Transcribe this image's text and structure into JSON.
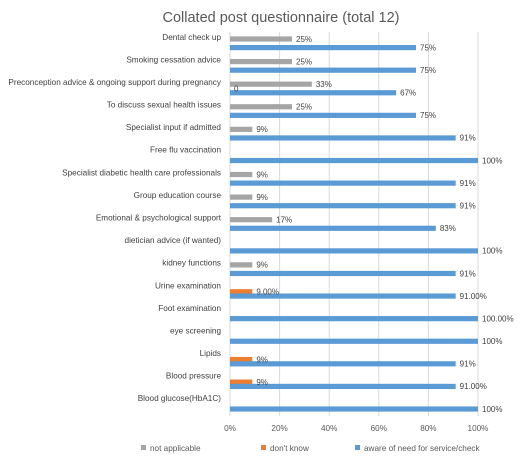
{
  "chart_data": {
    "type": "bar",
    "orientation": "horizontal",
    "title": "Collated post questionnaire (total 12)",
    "categories": [
      "Dental check up",
      "Smoking cessation advice",
      "Preconception advice & ongoing support during pregnancy",
      "To discuss sexual health issues",
      "Specialist input if admitted",
      "Free flu vaccination",
      "Specialist diabetic health care professionals",
      "Group education course",
      "Emotional & psychological support",
      "dietician advice (if wanted)",
      "kidney functions",
      "Urine examination",
      "Foot examination",
      "eye screening",
      "Lipids",
      "Blood pressure",
      "Blood glucose(HbA1C)"
    ],
    "series": [
      {
        "name": "not applicable",
        "color": "#a5a5a5",
        "values": [
          25,
          25,
          33,
          25,
          9,
          null,
          9,
          9,
          17,
          null,
          9,
          null,
          null,
          null,
          null,
          null,
          null
        ],
        "labels": [
          "25%",
          "25%",
          "33%",
          "25%",
          "9%",
          "",
          "9%",
          "9%",
          "17%",
          "",
          "9%",
          "",
          "",
          "",
          "",
          "",
          ""
        ]
      },
      {
        "name": "don't know",
        "color": "#ed7d31",
        "values": [
          null,
          null,
          0,
          null,
          null,
          null,
          null,
          null,
          null,
          null,
          null,
          9,
          null,
          null,
          9,
          9,
          null
        ],
        "labels": [
          "",
          "",
          "0",
          "",
          "",
          "",
          "",
          "",
          "",
          "",
          "",
          "9.00%",
          "",
          "",
          "9%",
          "9%",
          ""
        ]
      },
      {
        "name": "aware of need for service/check",
        "color": "#5b9bd5",
        "values": [
          75,
          75,
          67,
          75,
          91,
          100,
          91,
          91,
          83,
          100,
          91,
          91,
          100,
          100,
          91,
          91,
          100
        ],
        "labels": [
          "75%",
          "75%",
          "67%",
          "75%",
          "91%",
          "100%",
          "91%",
          "91%",
          "83%",
          "100%",
          "91%",
          "91.00%",
          "100.00%",
          "100%",
          "91%",
          "91.00%",
          "100%"
        ]
      }
    ],
    "x_ticks": [
      "0%",
      "20%",
      "40%",
      "60%",
      "80%",
      "100%"
    ],
    "xlim": [
      0,
      100
    ],
    "grid": true,
    "legend": {
      "position": "bottom"
    }
  }
}
